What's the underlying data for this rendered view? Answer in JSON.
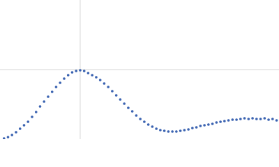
{
  "chart_data": {
    "type": "scatter",
    "color": "#3b63b1",
    "grid": true,
    "xlim": [
      0,
      3.48
    ],
    "ylim": [
      0,
      2
    ],
    "xticks": [
      1
    ],
    "yticks": [
      1
    ],
    "x": [
      0.05,
      0.1,
      0.15,
      0.2,
      0.25,
      0.3,
      0.35,
      0.4,
      0.45,
      0.5,
      0.55,
      0.6,
      0.65,
      0.7,
      0.75,
      0.8,
      0.85,
      0.9,
      0.95,
      1.0,
      1.05,
      1.1,
      1.15,
      1.2,
      1.25,
      1.3,
      1.35,
      1.4,
      1.45,
      1.5,
      1.55,
      1.6,
      1.65,
      1.7,
      1.75,
      1.8,
      1.85,
      1.9,
      1.95,
      2.0,
      2.05,
      2.1,
      2.15,
      2.2,
      2.25,
      2.3,
      2.35,
      2.4,
      2.45,
      2.5,
      2.55,
      2.6,
      2.65,
      2.7,
      2.75,
      2.8,
      2.85,
      2.9,
      2.95,
      3.0,
      3.05,
      3.1,
      3.15,
      3.2,
      3.25,
      3.3,
      3.35,
      3.4,
      3.45
    ],
    "values": [
      0.01,
      0.03,
      0.06,
      0.1,
      0.15,
      0.2,
      0.25,
      0.32,
      0.39,
      0.47,
      0.54,
      0.61,
      0.68,
      0.75,
      0.81,
      0.87,
      0.92,
      0.96,
      0.98,
      0.99,
      0.98,
      0.95,
      0.92,
      0.89,
      0.85,
      0.8,
      0.75,
      0.69,
      0.63,
      0.57,
      0.51,
      0.45,
      0.4,
      0.34,
      0.29,
      0.25,
      0.21,
      0.18,
      0.15,
      0.13,
      0.12,
      0.11,
      0.11,
      0.11,
      0.12,
      0.13,
      0.14,
      0.16,
      0.17,
      0.19,
      0.2,
      0.21,
      0.22,
      0.24,
      0.25,
      0.26,
      0.27,
      0.28,
      0.28,
      0.29,
      0.3,
      0.29,
      0.3,
      0.29,
      0.29,
      0.3,
      0.28,
      0.29,
      0.27
    ]
  }
}
